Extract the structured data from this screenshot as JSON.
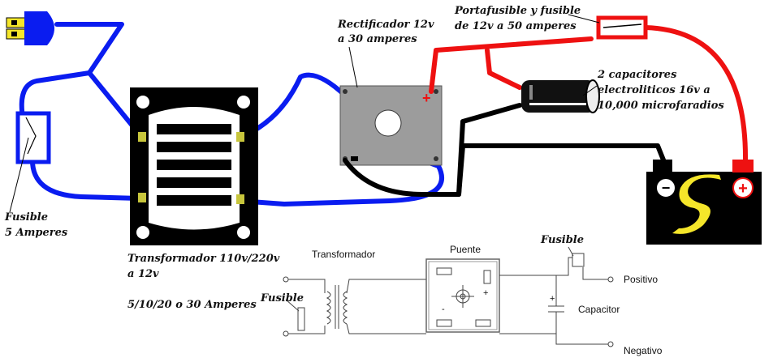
{
  "pictorial": {
    "rectifier_label": [
      "Rectificador 12v",
      "a 30 amperes"
    ],
    "holder_label": [
      "Portafusible y fusible",
      "de 12v a 50 amperes"
    ],
    "capacitor_label": [
      "2 capacitores",
      "electroliticos 16v a",
      "10,000 microfaradios"
    ],
    "fuse_label": [
      "Fusible",
      "5 Amperes"
    ],
    "transformer_label": [
      "Transformador 110v/220v",
      "a 12v"
    ],
    "amps_label": "5/10/20 o 30 Amperes",
    "plus_sign": "+",
    "battery_minus": "−",
    "battery_plus": "+"
  },
  "schematic": {
    "transformer": "Transformador",
    "bridge": "Puente",
    "fuse_in": "Fusible",
    "fuse_out": "Fusible",
    "positive": "Positivo",
    "capacitor": "Capacitor",
    "negative": "Negativo",
    "bridge_minus": "-",
    "bridge_plus": "+",
    "cap_plus": "+"
  },
  "colors": {
    "wire_blue": "#0a1cf0",
    "wire_red": "#ee1111",
    "wire_black": "#000000",
    "plug": "#f5e62a",
    "rectifier": "#9c9c9c",
    "battery_logo": "#f5e62a"
  }
}
